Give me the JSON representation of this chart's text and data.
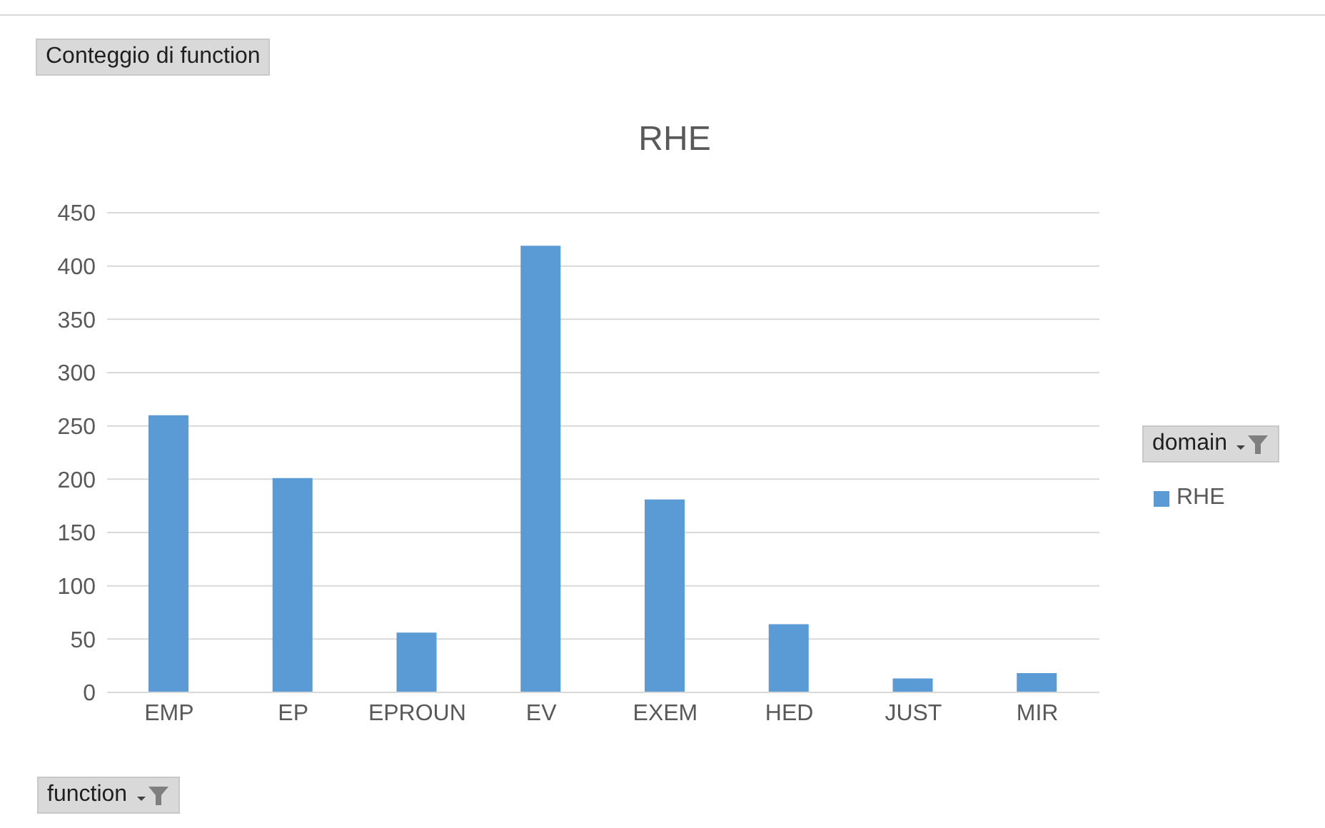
{
  "chart_data": {
    "type": "bar",
    "title": "RHE",
    "xlabel": "function",
    "legend_title": "domain",
    "annotations": [
      "Conteggio di function"
    ],
    "categories": [
      "EMP",
      "EP",
      "EPROUN",
      "EV",
      "EXEM",
      "HED",
      "JUST",
      "MIR"
    ],
    "series": [
      {
        "name": "RHE",
        "color": "#5b9bd5",
        "values": [
          260,
          201,
          56,
          419,
          181,
          64,
          13,
          18
        ]
      }
    ],
    "ylim": [
      0,
      450
    ],
    "yticks": [
      0,
      50,
      100,
      150,
      200,
      250,
      300,
      350,
      400,
      450
    ],
    "grid": "y",
    "legend": "right"
  }
}
